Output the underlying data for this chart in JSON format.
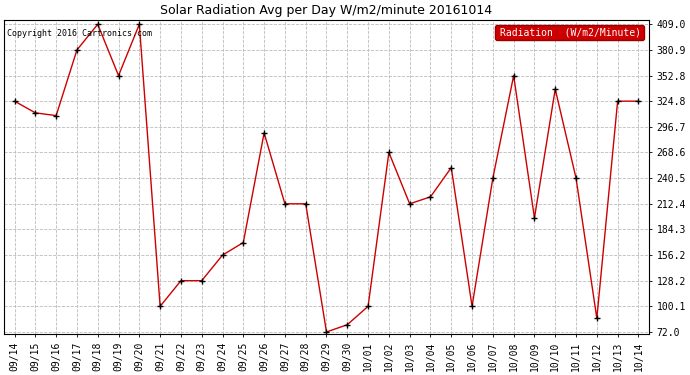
{
  "title": "Solar Radiation Avg per Day W/m2/minute 20161014",
  "copyright": "Copyright 2016 Cartronics.com",
  "legend_label": "Radiation  (W/m2/Minute)",
  "x_labels": [
    "09/14",
    "09/15",
    "09/16",
    "09/17",
    "09/18",
    "09/19",
    "09/20",
    "09/21",
    "09/22",
    "09/23",
    "09/24",
    "09/25",
    "09/26",
    "09/27",
    "09/28",
    "09/29",
    "09/30",
    "10/01",
    "10/02",
    "10/03",
    "10/04",
    "10/05",
    "10/06",
    "10/07",
    "10/08",
    "10/09",
    "10/10",
    "10/11",
    "10/12",
    "10/13",
    "10/14"
  ],
  "y_values": [
    324.8,
    312.0,
    309.0,
    380.9,
    409.0,
    352.8,
    409.0,
    100.1,
    128.2,
    128.2,
    156.2,
    170.0,
    290.0,
    212.4,
    212.4,
    72.0,
    80.0,
    100.1,
    268.6,
    212.4,
    220.0,
    252.0,
    100.1,
    240.5,
    352.8,
    197.0,
    338.0,
    240.5,
    87.0,
    324.8,
    324.8
  ],
  "line_color": "#cc0000",
  "marker_color": "#000000",
  "background_color": "#ffffff",
  "plot_bg_color": "#ffffff",
  "grid_color": "#bbbbbb",
  "y_min": 72.0,
  "y_max": 409.0,
  "y_ticks": [
    72.0,
    100.1,
    128.2,
    156.2,
    184.3,
    212.4,
    240.5,
    268.6,
    296.7,
    324.8,
    352.8,
    380.9,
    409.0
  ],
  "legend_bg": "#cc0000",
  "legend_text_color": "#ffffff",
  "title_fontsize": 9,
  "tick_fontsize": 7,
  "copyright_fontsize": 6
}
